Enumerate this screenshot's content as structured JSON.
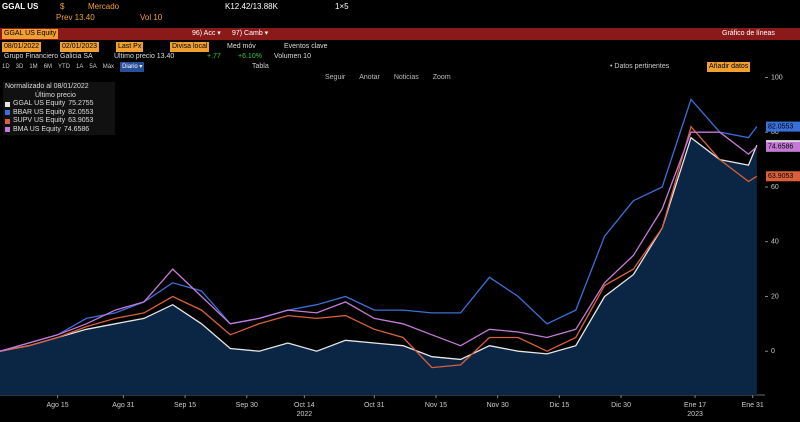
{
  "terminal": {
    "ticker": "GGAL US",
    "currency": "$",
    "market": "Mercado",
    "quote": "K12.42/13.88K",
    "size": "1×5",
    "prev": "Prev 13.40",
    "vol": "Vol 10",
    "security": "GGAL US Equity",
    "menu_acc": "96) Acc ▾",
    "menu_camb": "97) Camb ▾",
    "chart_kind": "Gráfico de líneas",
    "start_date": "08/01/2022",
    "end_date": "02/01/2023",
    "field": "Last Px",
    "currency_mode": "Divisa local",
    "moving_avg": "Med móv",
    "events": "Eventos clave",
    "company": "Grupo Financiero Galicia SA",
    "last_price": "Último precio 13.40",
    "change": "+.77",
    "change_pct": "+6.10%",
    "volume": "Volumen 10",
    "periods": [
      "1D",
      "3D",
      "1M",
      "6M",
      "YTD",
      "1A",
      "5A",
      "Máx"
    ],
    "frequency": "Diario ▾",
    "table": "Tabla",
    "relevant": "• Datos pertinentes",
    "add_data": "Añadir datos",
    "tools": [
      "Seguir",
      "Anotar",
      "Noticias",
      "Zoom"
    ],
    "legend_title": "Normalizado al 08/01/2022",
    "legend_sub": "Último precio"
  },
  "chart_data": {
    "type": "line",
    "x": [
      "2022-08-01",
      "2022-08-08",
      "2022-08-15",
      "2022-08-22",
      "2022-08-29",
      "2022-09-05",
      "2022-09-12",
      "2022-09-19",
      "2022-09-26",
      "2022-10-03",
      "2022-10-10",
      "2022-10-17",
      "2022-10-24",
      "2022-10-31",
      "2022-11-07",
      "2022-11-14",
      "2022-11-21",
      "2022-11-28",
      "2022-12-05",
      "2022-12-12",
      "2022-12-19",
      "2022-12-26",
      "2023-01-02",
      "2023-01-09",
      "2023-01-16",
      "2023-01-23",
      "2023-01-30",
      "2023-02-01"
    ],
    "xlim": [
      "2022-08-01",
      "2023-02-03"
    ],
    "xticks": [
      {
        "value": "2022-08-15",
        "label": "Ago 15"
      },
      {
        "value": "2022-08-31",
        "label": "Ago 31"
      },
      {
        "value": "2022-09-15",
        "label": "Sep 15"
      },
      {
        "value": "2022-09-30",
        "label": "Sep 30"
      },
      {
        "value": "2022-10-14",
        "label": "Oct 14"
      },
      {
        "value": "2022-10-31",
        "label": "Oct 31"
      },
      {
        "value": "2022-11-15",
        "label": "Nov 15"
      },
      {
        "value": "2022-11-30",
        "label": "Nov 30"
      },
      {
        "value": "2022-12-15",
        "label": "Dic 15"
      },
      {
        "value": "2022-12-30",
        "label": "Dic 30"
      },
      {
        "value": "2023-01-17",
        "label": "Ene 17"
      },
      {
        "value": "2023-01-31",
        "label": "Ene 31"
      }
    ],
    "xyears": [
      {
        "value": "2022-10-14",
        "label": "2022"
      },
      {
        "value": "2023-01-17",
        "label": "2023"
      }
    ],
    "ylim": [
      -16,
      102
    ],
    "yticks": [
      0,
      20,
      40,
      60,
      80,
      100
    ],
    "grid": false,
    "area_series": 0,
    "series": [
      {
        "name": "GGAL US Equity",
        "color": "#e6e6e6",
        "values": [
          0,
          2,
          5,
          8,
          10,
          12,
          17,
          10,
          1,
          0,
          3,
          0,
          4,
          3,
          2,
          -2,
          -3,
          2,
          0,
          -1,
          2,
          20,
          28,
          45,
          78,
          70,
          68,
          75.2755
        ]
      },
      {
        "name": "BBAR US Equity",
        "color": "#3b6fd9",
        "values": [
          0,
          3,
          6,
          12,
          14,
          18,
          25,
          22,
          10,
          12,
          15,
          17,
          20,
          15,
          15,
          14,
          14,
          27,
          20,
          10,
          15,
          42,
          55,
          60,
          92,
          80,
          78,
          82.0553
        ]
      },
      {
        "name": "SUPV US Equity",
        "color": "#d9603a",
        "values": [
          0,
          2,
          5,
          9,
          12,
          14,
          20,
          15,
          6,
          10,
          13,
          12,
          13,
          8,
          5,
          -6,
          -5,
          5,
          5,
          0,
          5,
          24,
          30,
          45,
          82,
          70,
          62,
          63.9053
        ]
      },
      {
        "name": "BMA US Equity",
        "color": "#c47ad6",
        "values": [
          0,
          3,
          6,
          10,
          15,
          18,
          30,
          20,
          10,
          12,
          15,
          14,
          18,
          12,
          10,
          6,
          2,
          8,
          7,
          5,
          8,
          25,
          35,
          52,
          80,
          80,
          72,
          74.6586
        ]
      }
    ]
  }
}
